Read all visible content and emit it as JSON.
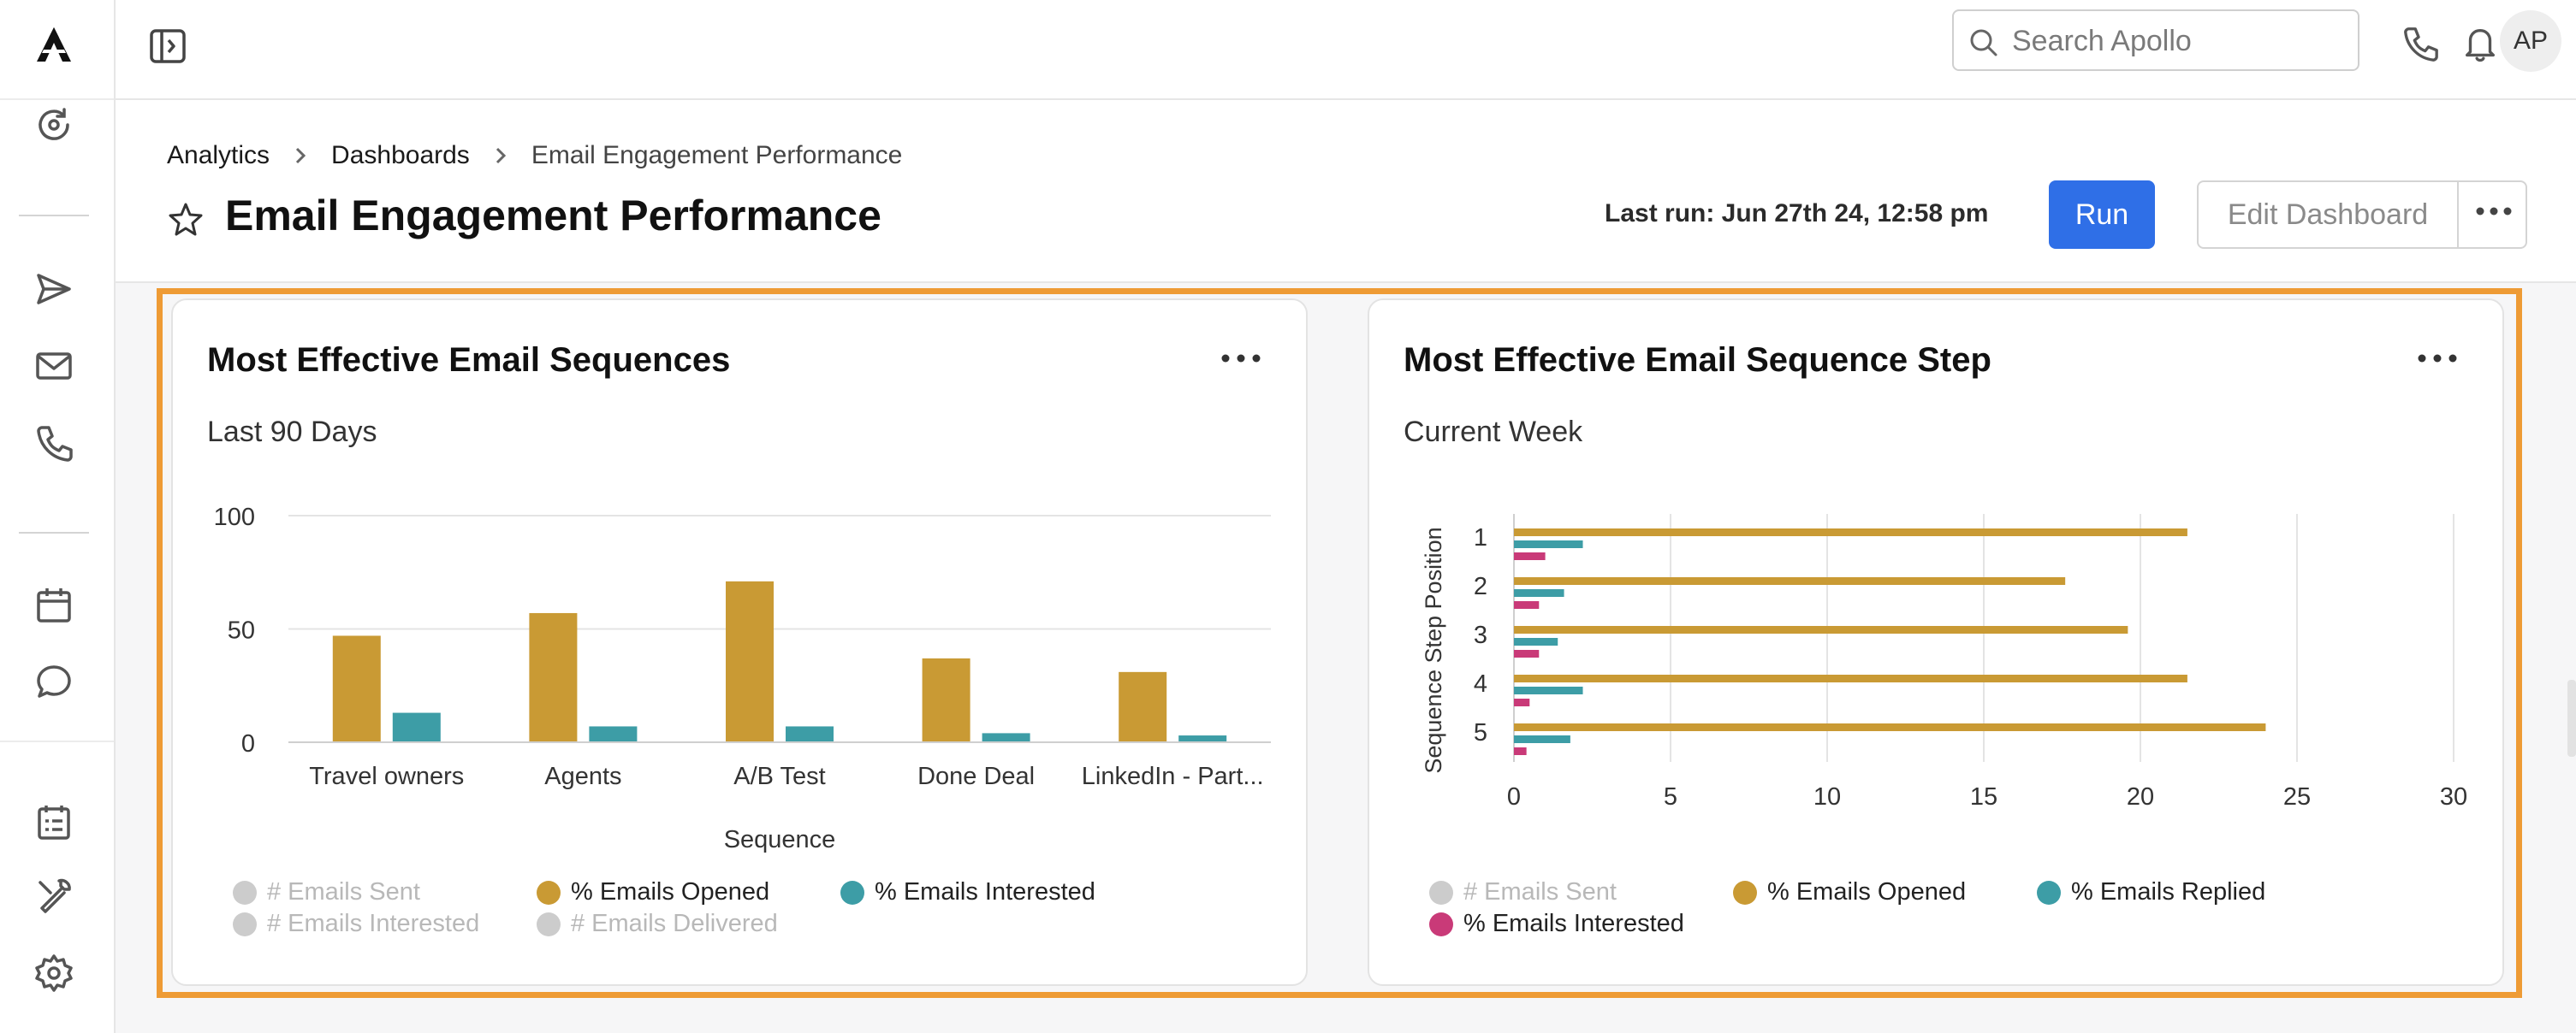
{
  "app": {
    "logo_icon": "apollo-logo-icon"
  },
  "sidebar": {
    "icons": [
      "refresh-icon",
      "send-icon",
      "mail-icon",
      "phone-icon",
      "calendar-icon",
      "chat-icon",
      "task-list-icon",
      "tools-icon",
      "gear-icon"
    ]
  },
  "topbar": {
    "search_placeholder": "Search Apollo",
    "avatar_initials": "AP",
    "icons": [
      "panel-toggle-icon",
      "search-icon",
      "phone-icon",
      "bell-icon"
    ]
  },
  "header": {
    "breadcrumb": [
      "Analytics",
      "Dashboards",
      "Email Engagement Performance"
    ],
    "title": "Email Engagement Performance",
    "last_run": "Last run: Jun 27th 24, 12:58 pm",
    "run_label": "Run",
    "edit_label": "Edit Dashboard"
  },
  "colors": {
    "opened": "#c99a34",
    "interested_teal": "#3d9da6",
    "interested_pink": "#c93a78",
    "disabled": "#cccccc",
    "accent": "#2f6fe7",
    "highlight": "#ee9b35"
  },
  "cards": [
    {
      "title": "Most Effective Email Sequences",
      "subtitle": "Last 90 Days",
      "chart_data": {
        "type": "bar",
        "categories": [
          "Travel owners",
          "Agents",
          "A/B Test",
          "Done Deal",
          "LinkedIn - Part..."
        ],
        "series": [
          {
            "name": "% Emails Opened",
            "values": [
              47,
              57,
              71,
              37,
              31
            ]
          },
          {
            "name": "% Emails Interested",
            "values": [
              13,
              7,
              7,
              4,
              3
            ]
          }
        ],
        "yticks": [
          "0",
          "50",
          "100"
        ],
        "ylim": [
          0,
          100
        ],
        "xlabel": "Sequence",
        "ylabel": "",
        "legend": [
          {
            "label": "# Emails Sent",
            "active": false
          },
          {
            "label": "% Emails Opened",
            "active": true
          },
          {
            "label": "% Emails Interested",
            "active": true
          },
          {
            "label": "# Emails Interested",
            "active": false
          },
          {
            "label": "# Emails Delivered",
            "active": false
          }
        ],
        "legend_position": "bottom"
      }
    },
    {
      "title": "Most Effective Email Sequence Step",
      "subtitle": "Current Week",
      "chart_data": {
        "type": "bar",
        "orientation": "horizontal",
        "categories": [
          "1",
          "2",
          "3",
          "4",
          "5"
        ],
        "series": [
          {
            "name": "% Emails Opened",
            "values": [
              21.5,
              17.6,
              19.6,
              21.5,
              24
            ]
          },
          {
            "name": "% Emails Replied",
            "values": [
              2.2,
              1.6,
              1.4,
              2.2,
              1.8
            ]
          },
          {
            "name": "% Emails Interested",
            "values": [
              1.0,
              0.8,
              0.8,
              0.5,
              0.4
            ]
          }
        ],
        "xticks": [
          "0",
          "5",
          "10",
          "15",
          "20",
          "25",
          "30"
        ],
        "xlim": [
          0,
          30
        ],
        "ylabel": "Sequence Step Position",
        "legend": [
          {
            "label": "# Emails Sent",
            "active": false
          },
          {
            "label": "% Emails Opened",
            "active": true
          },
          {
            "label": "% Emails Replied",
            "active": true
          },
          {
            "label": "% Emails Interested",
            "active": true
          }
        ],
        "legend_position": "bottom"
      }
    }
  ]
}
